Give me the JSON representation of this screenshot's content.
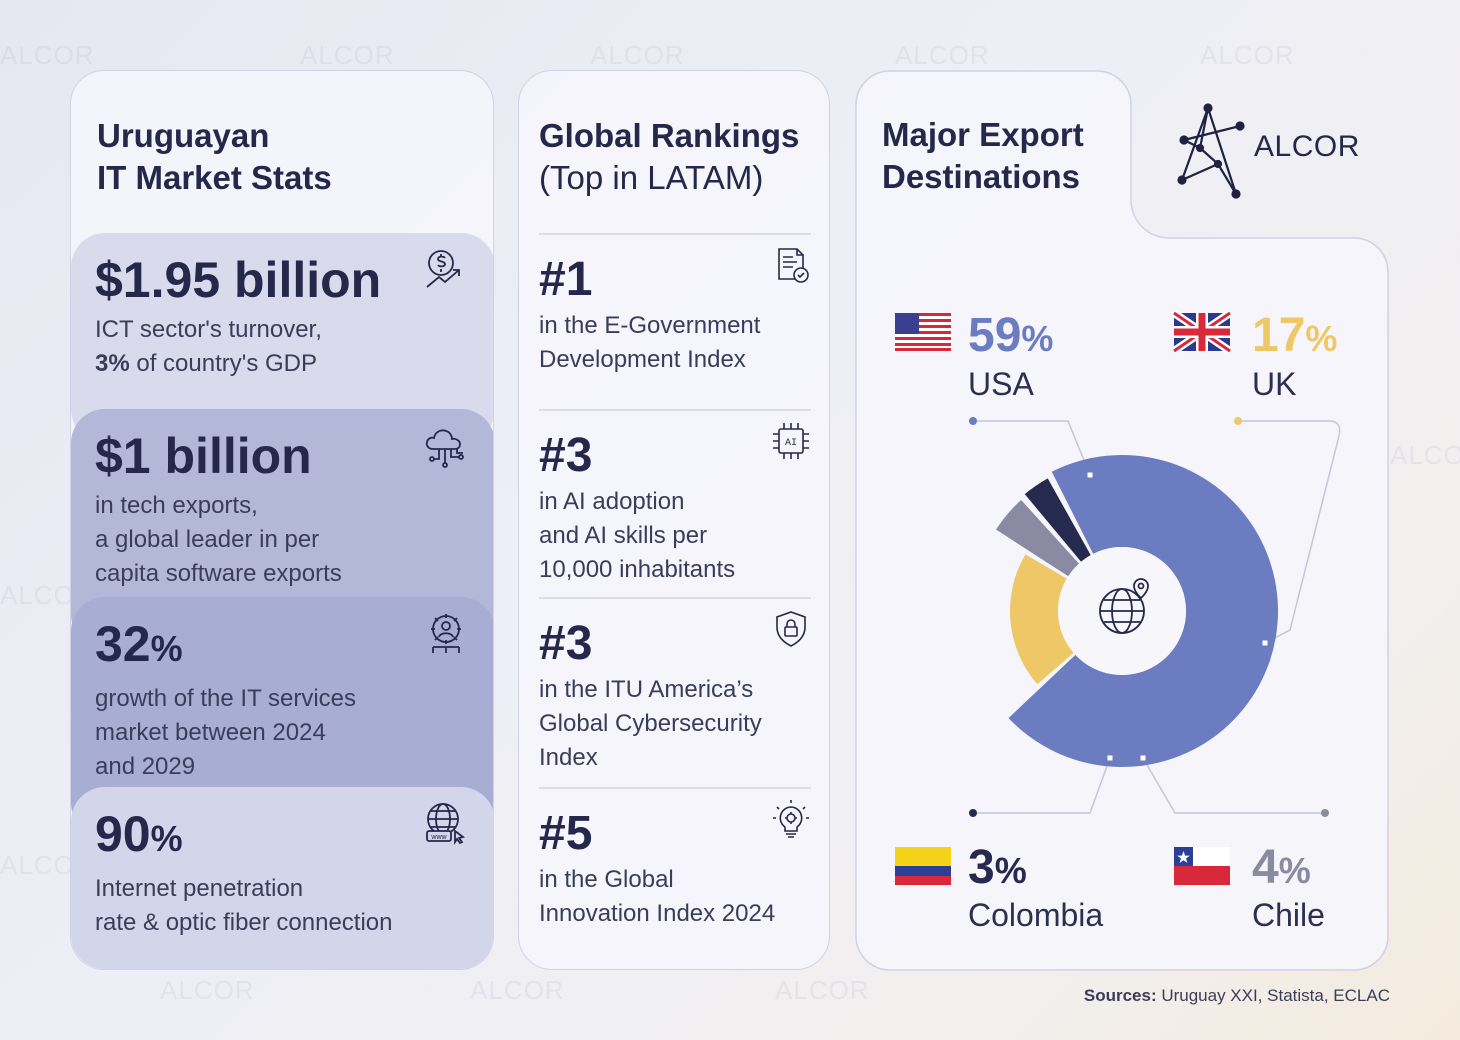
{
  "watermark": "ALCOR",
  "card1": {
    "title_line1": "Uruguayan",
    "title_line2": "IT Market Stats",
    "stats": [
      {
        "value": "$1.95 billion",
        "line1": "ICT sector's turnover,",
        "line2_bold": "3%",
        "line2_rest": " of country's GDP",
        "icon": "dollar-growth-icon"
      },
      {
        "value": "$1 billion",
        "line1": "in tech exports,",
        "line2": "a global leader in per",
        "line3": "capita software exports",
        "icon": "cloud-circuit-icon"
      },
      {
        "value_num": "32",
        "value_pct": "%",
        "line1": "growth of the IT services",
        "line2": "market between 2024",
        "line3": "and 2029",
        "icon": "gear-person-icon"
      },
      {
        "value_num": "90",
        "value_pct": "%",
        "line1": "Internet penetration",
        "line2": "rate & optic fiber connection",
        "icon": "globe-www-icon"
      }
    ]
  },
  "card2": {
    "title_bold": "Global Rankings",
    "title_light": "(Top in LATAM)",
    "ranks": [
      {
        "num": "#1",
        "line1": "in the E-Government",
        "line2": "Development Index",
        "icon": "document-check-icon"
      },
      {
        "num": "#3",
        "line1": "in AI adoption",
        "line2": "and AI skills per",
        "line3": "10,000 inhabitants",
        "icon": "ai-chip-icon"
      },
      {
        "num": "#3",
        "line1": "in the ITU America’s",
        "line2": "Global Cybersecurity",
        "line3": "Index",
        "icon": "shield-lock-icon"
      },
      {
        "num": "#5",
        "line1": "in the Global",
        "line2": "Innovation Index 2024",
        "icon": "lightbulb-gear-icon"
      }
    ]
  },
  "card3": {
    "title_line1": "Major Export",
    "title_line2": "Destinations",
    "logo_text": "ALCOR"
  },
  "chart_data": {
    "type": "pie",
    "title": "Major Export Destinations",
    "categories": [
      "USA",
      "UK",
      "Colombia",
      "Chile"
    ],
    "values": [
      59,
      17,
      3,
      4
    ],
    "labels": [
      {
        "num": "59",
        "pct": "%",
        "name": "USA"
      },
      {
        "num": "17",
        "pct": "%",
        "name": "UK"
      },
      {
        "num": "3",
        "pct": "%",
        "name": "Colombia"
      },
      {
        "num": "4",
        "pct": "%",
        "name": "Chile"
      }
    ],
    "colors": [
      "#6b7cc1",
      "#eec766",
      "#262a4e",
      "#8b8aa3"
    ],
    "center_icon": "globe-pin-icon"
  },
  "sources_label": "Sources:",
  "sources_text": " Uruguay XXI, Statista, ECLAC"
}
